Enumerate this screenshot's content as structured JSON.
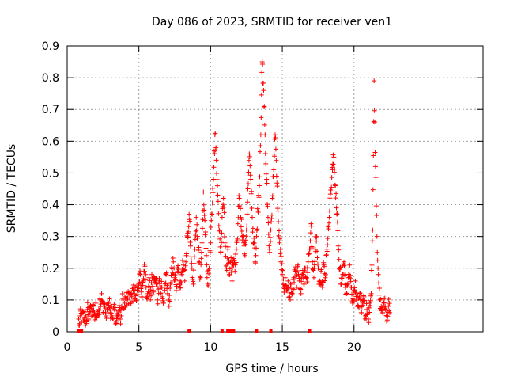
{
  "chart_data": {
    "type": "scatter",
    "title": "Day 086 of 2023, SRMTID for receiver ven1",
    "xlabel": "GPS time / hours",
    "ylabel": "SRMTID / TECUs",
    "xlim": [
      0,
      29
    ],
    "ylim": [
      0,
      0.9
    ],
    "xticks": [
      0,
      5,
      10,
      15,
      20
    ],
    "yticks": [
      0,
      0.1,
      0.2,
      0.3,
      0.4,
      0.5,
      0.6,
      0.7,
      0.8,
      0.9
    ],
    "xtick_labels": [
      "0",
      "5",
      "10",
      "15",
      "20"
    ],
    "ytick_labels": [
      "0",
      "0.1",
      "0.2",
      "0.3",
      "0.4",
      "0.5",
      "0.6",
      "0.7",
      "0.8",
      "0.9"
    ],
    "grid": true,
    "marker": "plus",
    "marker_color": "#ff0000",
    "series": [
      {
        "name": "SRMTID",
        "points": [
          [
            0.8,
            0.04
          ],
          [
            0.9,
            0.05
          ],
          [
            1.0,
            0.03
          ],
          [
            1.1,
            0.06
          ],
          [
            1.2,
            0.04
          ],
          [
            1.3,
            0.05
          ],
          [
            1.4,
            0.07
          ],
          [
            1.5,
            0.04
          ],
          [
            1.6,
            0.06
          ],
          [
            1.7,
            0.05
          ],
          [
            1.8,
            0.08
          ],
          [
            1.9,
            0.06
          ],
          [
            2.0,
            0.09
          ],
          [
            2.1,
            0.05
          ],
          [
            2.2,
            0.07
          ],
          [
            2.3,
            0.1
          ],
          [
            2.4,
            0.12
          ],
          [
            2.5,
            0.06
          ],
          [
            2.6,
            0.08
          ],
          [
            2.7,
            0.05
          ],
          [
            2.8,
            0.07
          ],
          [
            2.9,
            0.09
          ],
          [
            3.0,
            0.06
          ],
          [
            3.1,
            0.08
          ],
          [
            3.2,
            0.04
          ],
          [
            3.3,
            0.07
          ],
          [
            3.4,
            0.03
          ],
          [
            3.5,
            0.05
          ],
          [
            3.6,
            0.06
          ],
          [
            3.7,
            0.04
          ],
          [
            3.8,
            0.08
          ],
          [
            3.9,
            0.1
          ],
          [
            4.0,
            0.09
          ],
          [
            4.1,
            0.11
          ],
          [
            4.2,
            0.1
          ],
          [
            4.3,
            0.12
          ],
          [
            4.4,
            0.09
          ],
          [
            4.5,
            0.11
          ],
          [
            4.6,
            0.13
          ],
          [
            4.7,
            0.12
          ],
          [
            4.8,
            0.1
          ],
          [
            4.9,
            0.13
          ],
          [
            5.0,
            0.15
          ],
          [
            5.1,
            0.18
          ],
          [
            5.2,
            0.11
          ],
          [
            5.3,
            0.16
          ],
          [
            5.4,
            0.19
          ],
          [
            5.5,
            0.14
          ],
          [
            5.6,
            0.12
          ],
          [
            5.7,
            0.17
          ],
          [
            5.8,
            0.1
          ],
          [
            5.9,
            0.18
          ],
          [
            6.0,
            0.13
          ],
          [
            6.1,
            0.17
          ],
          [
            6.2,
            0.15
          ],
          [
            6.3,
            0.1
          ],
          [
            6.4,
            0.16
          ],
          [
            6.5,
            0.12
          ],
          [
            6.6,
            0.14
          ],
          [
            6.7,
            0.09
          ],
          [
            6.8,
            0.13
          ],
          [
            6.9,
            0.18
          ],
          [
            7.0,
            0.12
          ],
          [
            7.1,
            0.08
          ],
          [
            7.2,
            0.15
          ],
          [
            7.3,
            0.2
          ],
          [
            7.4,
            0.22
          ],
          [
            7.5,
            0.17
          ],
          [
            7.6,
            0.13
          ],
          [
            7.7,
            0.19
          ],
          [
            7.8,
            0.15
          ],
          [
            7.9,
            0.14
          ],
          [
            8.0,
            0.18
          ],
          [
            8.1,
            0.21
          ],
          [
            8.2,
            0.16
          ],
          [
            8.3,
            0.24
          ],
          [
            8.4,
            0.31
          ],
          [
            8.5,
            0.37
          ],
          [
            8.6,
            0.27
          ],
          [
            8.7,
            0.2
          ],
          [
            8.8,
            0.15
          ],
          [
            8.9,
            0.26
          ],
          [
            9.0,
            0.36
          ],
          [
            9.1,
            0.3
          ],
          [
            9.2,
            0.22
          ],
          [
            9.3,
            0.17
          ],
          [
            9.4,
            0.28
          ],
          [
            9.5,
            0.44
          ],
          [
            9.6,
            0.35
          ],
          [
            9.7,
            0.24
          ],
          [
            9.8,
            0.15
          ],
          [
            9.9,
            0.2
          ],
          [
            10.0,
            0.28
          ],
          [
            10.1,
            0.37
          ],
          [
            10.2,
            0.48
          ],
          [
            10.3,
            0.62
          ],
          [
            10.4,
            0.54
          ],
          [
            10.5,
            0.43
          ],
          [
            10.6,
            0.32
          ],
          [
            10.7,
            0.25
          ],
          [
            10.8,
            0.36
          ],
          [
            10.9,
            0.42
          ],
          [
            11.0,
            0.28
          ],
          [
            11.1,
            0.2
          ],
          [
            11.2,
            0.26
          ],
          [
            11.3,
            0.18
          ],
          [
            11.4,
            0.22
          ],
          [
            11.5,
            0.16
          ],
          [
            11.6,
            0.21
          ],
          [
            11.7,
            0.19
          ],
          [
            11.8,
            0.26
          ],
          [
            11.9,
            0.34
          ],
          [
            12.0,
            0.42
          ],
          [
            12.1,
            0.36
          ],
          [
            12.2,
            0.3
          ],
          [
            12.3,
            0.28
          ],
          [
            12.4,
            0.24
          ],
          [
            12.5,
            0.32
          ],
          [
            12.6,
            0.45
          ],
          [
            12.7,
            0.56
          ],
          [
            12.8,
            0.48
          ],
          [
            12.9,
            0.36
          ],
          [
            13.0,
            0.28
          ],
          [
            13.1,
            0.22
          ],
          [
            13.2,
            0.3
          ],
          [
            13.3,
            0.38
          ],
          [
            13.4,
            0.46
          ],
          [
            13.5,
            0.62
          ],
          [
            13.6,
            0.85
          ],
          [
            13.7,
            0.76
          ],
          [
            13.8,
            0.62
          ],
          [
            13.9,
            0.48
          ],
          [
            14.0,
            0.36
          ],
          [
            14.1,
            0.26
          ],
          [
            14.2,
            0.32
          ],
          [
            14.3,
            0.42
          ],
          [
            14.4,
            0.51
          ],
          [
            14.5,
            0.62
          ],
          [
            14.6,
            0.49
          ],
          [
            14.7,
            0.38
          ],
          [
            14.8,
            0.28
          ],
          [
            14.9,
            0.22
          ],
          [
            15.0,
            0.18
          ],
          [
            15.1,
            0.14
          ],
          [
            15.2,
            0.17
          ],
          [
            15.3,
            0.13
          ],
          [
            15.4,
            0.16
          ],
          [
            15.5,
            0.11
          ],
          [
            15.6,
            0.15
          ],
          [
            15.7,
            0.12
          ],
          [
            15.8,
            0.17
          ],
          [
            15.9,
            0.19
          ],
          [
            16.0,
            0.14
          ],
          [
            16.1,
            0.21
          ],
          [
            16.2,
            0.16
          ],
          [
            16.3,
            0.12
          ],
          [
            16.4,
            0.18
          ],
          [
            16.5,
            0.15
          ],
          [
            16.6,
            0.2
          ],
          [
            16.7,
            0.17
          ],
          [
            16.8,
            0.22
          ],
          [
            16.9,
            0.26
          ],
          [
            17.0,
            0.34
          ],
          [
            17.1,
            0.22
          ],
          [
            17.2,
            0.17
          ],
          [
            17.3,
            0.26
          ],
          [
            17.4,
            0.3
          ],
          [
            17.5,
            0.2
          ],
          [
            17.6,
            0.15
          ],
          [
            17.7,
            0.19
          ],
          [
            17.8,
            0.14
          ],
          [
            17.9,
            0.21
          ],
          [
            18.0,
            0.17
          ],
          [
            18.1,
            0.26
          ],
          [
            18.2,
            0.33
          ],
          [
            18.3,
            0.38
          ],
          [
            18.4,
            0.44
          ],
          [
            18.5,
            0.51
          ],
          [
            18.6,
            0.55
          ],
          [
            18.7,
            0.46
          ],
          [
            18.8,
            0.37
          ],
          [
            18.9,
            0.27
          ],
          [
            19.0,
            0.2
          ],
          [
            19.1,
            0.15
          ],
          [
            19.2,
            0.18
          ],
          [
            19.3,
            0.22
          ],
          [
            19.4,
            0.14
          ],
          [
            19.5,
            0.12
          ],
          [
            19.6,
            0.17
          ],
          [
            19.7,
            0.21
          ],
          [
            19.8,
            0.14
          ],
          [
            19.9,
            0.09
          ],
          [
            20.0,
            0.13
          ],
          [
            20.1,
            0.16
          ],
          [
            20.2,
            0.1
          ],
          [
            20.3,
            0.08
          ],
          [
            20.4,
            0.12
          ],
          [
            20.5,
            0.06
          ],
          [
            20.6,
            0.09
          ],
          [
            20.7,
            0.11
          ],
          [
            20.8,
            0.05
          ],
          [
            20.9,
            0.07
          ],
          [
            21.0,
            0.04
          ],
          [
            21.1,
            0.09
          ],
          [
            21.2,
            0.12
          ],
          [
            21.3,
            0.32
          ],
          [
            21.4,
            0.79
          ],
          [
            21.5,
            0.52
          ],
          [
            21.6,
            0.3
          ],
          [
            21.7,
            0.18
          ],
          [
            21.8,
            0.1
          ],
          [
            21.9,
            0.08
          ],
          [
            22.0,
            0.06
          ],
          [
            22.1,
            0.09
          ],
          [
            22.2,
            0.07
          ],
          [
            22.3,
            0.05
          ],
          [
            22.4,
            0.08
          ],
          [
            22.5,
            0.06
          ]
        ]
      }
    ],
    "zero_markers_x": [
      0.8,
      1.0,
      8.5,
      10.8,
      11.2,
      11.4,
      11.6,
      13.2,
      14.2,
      16.9
    ]
  }
}
